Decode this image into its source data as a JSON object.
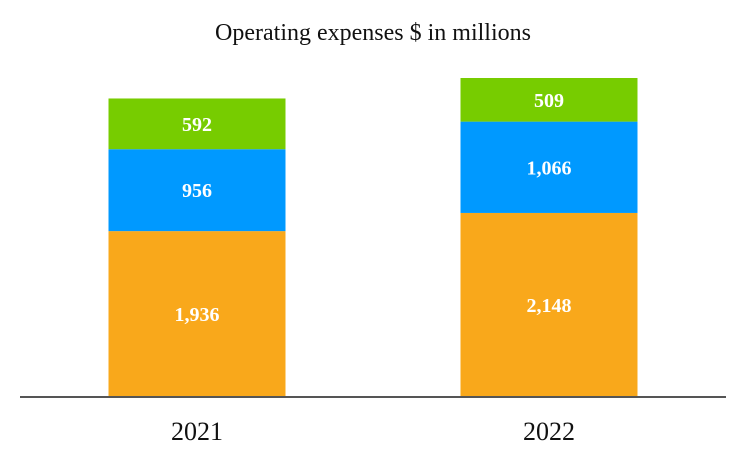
{
  "chart_data": {
    "type": "bar",
    "stacked": true,
    "title": "Operating expenses $ in millions",
    "xlabel": "",
    "ylabel": "",
    "categories": [
      "2021",
      "2022"
    ],
    "series": [
      {
        "name": "bottom",
        "color": "#F9A81B",
        "values": [
          1936,
          2148
        ],
        "labels": [
          "1,936",
          "2,148"
        ]
      },
      {
        "name": "middle",
        "color": "#0099FF",
        "values": [
          956,
          1066
        ],
        "labels": [
          "956",
          "1,066"
        ]
      },
      {
        "name": "top",
        "color": "#77CC00",
        "values": [
          592,
          509
        ],
        "labels": [
          "592",
          "509"
        ]
      }
    ],
    "ylim": [
      0,
      3723
    ],
    "grid": false,
    "legend": "none",
    "axis_color": "#555555"
  }
}
